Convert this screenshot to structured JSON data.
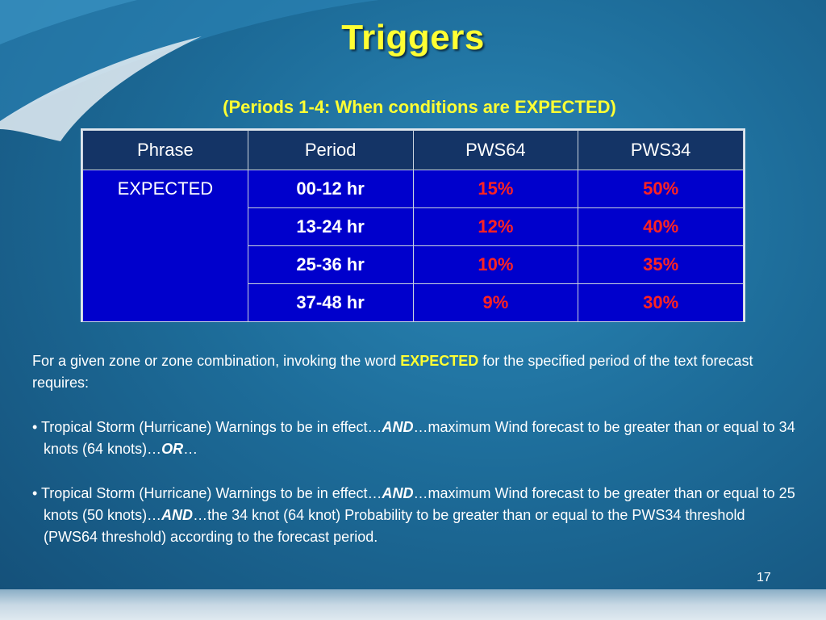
{
  "slide": {
    "title": "Triggers",
    "subtitle": "(Periods 1-4: When conditions are EXPECTED)",
    "page_number": "17"
  },
  "table": {
    "headers": [
      "Phrase",
      "Period",
      "PWS64",
      "PWS34"
    ],
    "phrase": "EXPECTED",
    "rows": [
      {
        "period": "00-12 hr",
        "pws64": "15%",
        "pws34": "50%"
      },
      {
        "period": "13-24 hr",
        "pws64": "12%",
        "pws34": "40%"
      },
      {
        "period": "25-36 hr",
        "pws64": "10%",
        "pws34": "35%"
      },
      {
        "period": "37-48 hr",
        "pws64": "9%",
        "pws34": "30%"
      }
    ]
  },
  "body": {
    "intro_before": "For a given zone or zone combination, invoking the word ",
    "intro_keyword": "EXPECTED",
    "intro_after": " for the specified period of the text forecast requires:",
    "bullet1_a": "• Tropical Storm (Hurricane) Warnings to be in effect…",
    "bullet1_and": "AND",
    "bullet1_b": "…maximum Wind forecast to be greater than or equal to 34 knots (64 knots)…",
    "bullet1_or": "OR",
    "bullet1_c": "…",
    "bullet2_a": "• Tropical Storm (Hurricane) Warnings to be in effect…",
    "bullet2_and1": "AND",
    "bullet2_b": "…maximum Wind forecast to be greater than or equal to 25 knots (50 knots)…",
    "bullet2_and2": "AND",
    "bullet2_c": "…the 34 knot (64 knot) Probability to be greater than or equal to the PWS34 threshold (PWS64 threshold) according to the forecast period."
  },
  "colors": {
    "title": "#ffff33",
    "table_header_bg": "#143466",
    "table_body_bg": "#0000cc",
    "percent_value": "#ff2222"
  }
}
